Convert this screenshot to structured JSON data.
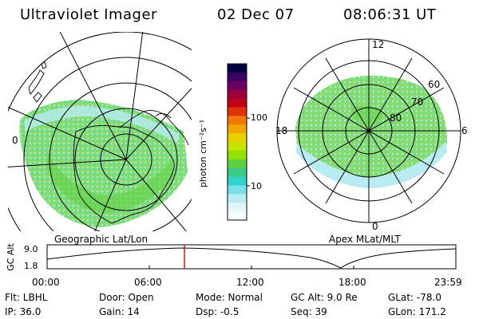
{
  "header": {
    "instrument": "Ultraviolet Imager",
    "date": "02 Dec 07",
    "time": "08:06:31 UT"
  },
  "left_map": {
    "caption": "Geographic Lat/Lon",
    "edge_label": "0"
  },
  "right_map": {
    "caption": "Apex  MLat/MLT",
    "mlt_top": "12",
    "mlt_left": "18",
    "mlt_right": "6",
    "mlt_bottom": "0",
    "lat_labels": [
      "60",
      "70",
      "80"
    ]
  },
  "colorbar": {
    "unit_label": "photon cm⁻²s⁻¹",
    "tick_high": "100",
    "tick_low": "10",
    "colors": [
      "#000040",
      "#3a0060",
      "#6a0060",
      "#9a003a",
      "#c40018",
      "#e2320c",
      "#f07808",
      "#f2a400",
      "#e8d000",
      "#c8e400",
      "#90e000",
      "#60d040",
      "#38cc88",
      "#30d4c8",
      "#78e0e8",
      "#b8ecf2",
      "#e2f6fa",
      "#f6fbfd"
    ]
  },
  "timeline": {
    "axis_label": "GC Alt",
    "y_max": "9.0",
    "y_min": "1.8",
    "x_ticks": [
      "00:00",
      "06:00",
      "12:00",
      "18:00",
      "23:59"
    ],
    "current_time_fraction": 0.336
  },
  "footer": {
    "flt": "Flt: LBHL",
    "ip": "IP: 36.0",
    "door": "Door: Open",
    "gain": "Gain: 14",
    "mode": "Mode: Normal",
    "dsp": "Dsp:    -0.5",
    "gc_alt": "GC Alt: 9.0 Re",
    "seq": "Seq: 39",
    "glat": "GLat: -78.0",
    "glon": "GLon: 171.2"
  }
}
